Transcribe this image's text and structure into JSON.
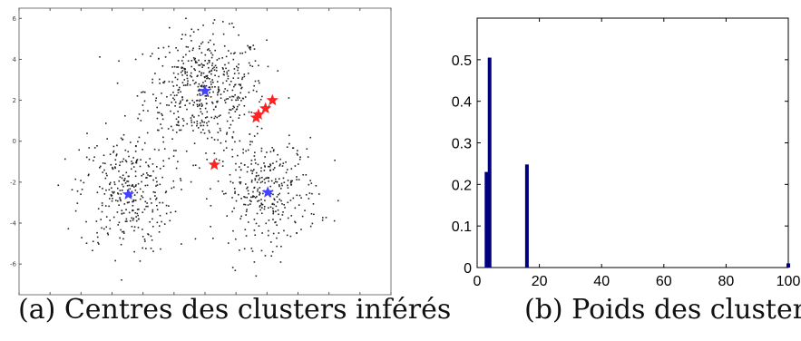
{
  "captions": {
    "a": "(a) Centres des clusters inférés",
    "b": "(b) Poids des clusters"
  },
  "chart_data": [
    {
      "type": "scatter",
      "title": "",
      "xlabel": "",
      "ylabel": "",
      "xlim": [
        -8,
        8
      ],
      "ylim": [
        -7.5,
        6.5
      ],
      "y_ticks": [
        6,
        4,
        2,
        0,
        -2,
        -4,
        -6
      ],
      "y_tick_labels": [
        "6",
        "4",
        "2",
        "0",
        "-2",
        "-4",
        "-6"
      ],
      "grid": false,
      "clusters": [
        {
          "center": [
            0,
            2.5
          ],
          "spread": [
            1.3,
            1.4
          ],
          "count": 520
        },
        {
          "center": [
            -3.4,
            -2.5
          ],
          "spread": [
            1.0,
            1.5
          ],
          "count": 330
        },
        {
          "center": [
            2.7,
            -2.5
          ],
          "spread": [
            1.1,
            1.3
          ],
          "count": 330
        }
      ],
      "points_color": "#222222",
      "blue_centers": [
        [
          0,
          2.45
        ],
        [
          -3.3,
          -2.6
        ],
        [
          2.7,
          -2.5
        ]
      ],
      "red_centers": [
        [
          2.9,
          2.0
        ],
        [
          2.6,
          1.6
        ],
        [
          2.3,
          1.3
        ],
        [
          2.2,
          1.15
        ],
        [
          0.4,
          -1.15
        ]
      ],
      "colors": {
        "blue": "#4444ff",
        "red": "#ff2222"
      }
    },
    {
      "type": "bar",
      "title": "",
      "xlabel": "",
      "ylabel": "",
      "xlim": [
        0,
        100
      ],
      "ylim": [
        0,
        0.6
      ],
      "x_ticks": [
        0,
        20,
        40,
        60,
        80,
        100
      ],
      "x_tick_labels": [
        "0",
        "20",
        "40",
        "60",
        "80",
        "100"
      ],
      "y_ticks": [
        0,
        0.1,
        0.2,
        0.3,
        0.4,
        0.5
      ],
      "y_tick_labels": [
        "0",
        "0.1",
        "0.2",
        "0.3",
        "0.4",
        "0.5"
      ],
      "bars": [
        {
          "x": 3,
          "value": 0.23
        },
        {
          "x": 4,
          "value": 0.505
        },
        {
          "x": 16,
          "value": 0.248
        },
        {
          "x": 100,
          "value": 0.01
        }
      ],
      "bar_color": "#00007f",
      "grid": false
    }
  ]
}
